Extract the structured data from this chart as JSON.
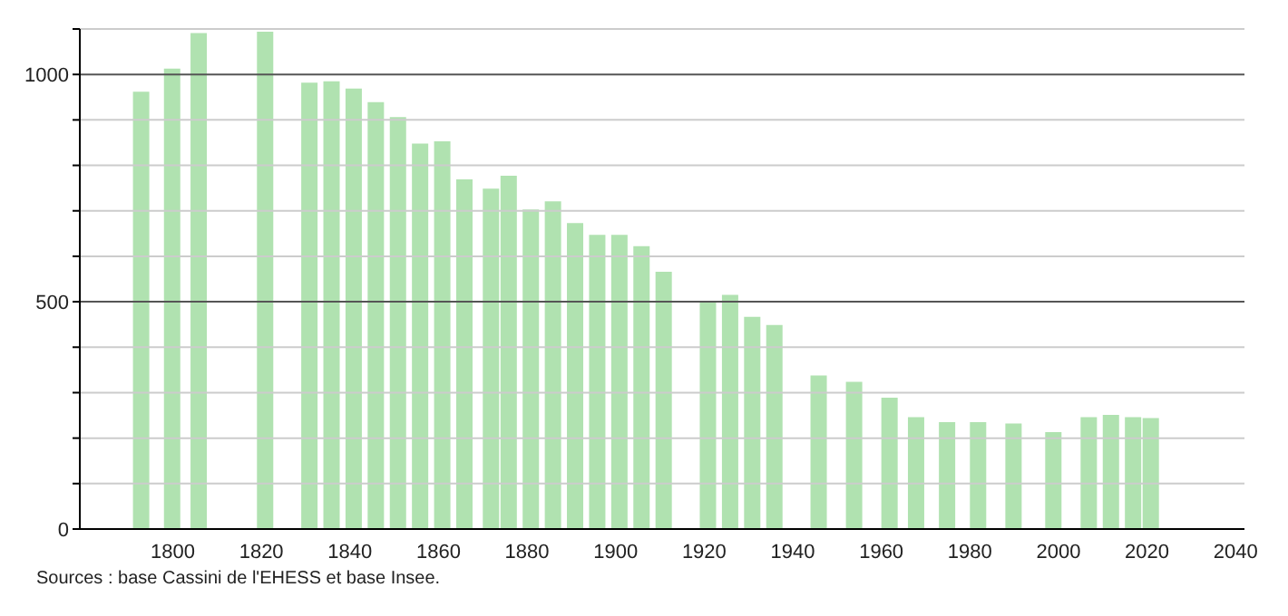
{
  "chart_data": {
    "type": "bar",
    "x": [
      1793,
      1800,
      1806,
      1821,
      1831,
      1836,
      1841,
      1846,
      1851,
      1856,
      1861,
      1866,
      1872,
      1876,
      1881,
      1886,
      1891,
      1896,
      1901,
      1906,
      1911,
      1921,
      1926,
      1931,
      1936,
      1946,
      1954,
      1962,
      1968,
      1975,
      1982,
      1990,
      1999,
      2007,
      2012,
      2017,
      2021
    ],
    "values": [
      962,
      1013,
      1091,
      1094,
      982,
      985,
      969,
      939,
      906,
      848,
      853,
      769,
      749,
      777,
      703,
      721,
      673,
      647,
      647,
      622,
      566,
      502,
      515,
      467,
      449,
      338,
      324,
      289,
      246,
      235,
      235,
      232,
      213,
      246,
      251,
      246,
      244
    ],
    "color": "#b0e2b0",
    "xlim": [
      1779,
      2042
    ],
    "xticks": [
      1800,
      1820,
      1840,
      1860,
      1880,
      1900,
      1920,
      1940,
      1960,
      1980,
      2000,
      2020,
      2040
    ],
    "ylim": [
      0,
      1100
    ],
    "yticks": [
      0,
      {
        "value": 100,
        "label": null
      },
      {
        "value": 200,
        "label": null
      },
      {
        "value": 300,
        "label": null
      },
      {
        "value": 400,
        "label": null
      },
      500,
      {
        "value": 600,
        "label": null
      },
      {
        "value": 700,
        "label": null
      },
      {
        "value": 800,
        "label": null
      },
      {
        "value": 900,
        "label": null
      },
      1000,
      {
        "value": 1100,
        "label": null
      }
    ],
    "grid": "y",
    "annotations": [
      "Sources : base Cassini de l'EHESS et base Insee."
    ]
  }
}
